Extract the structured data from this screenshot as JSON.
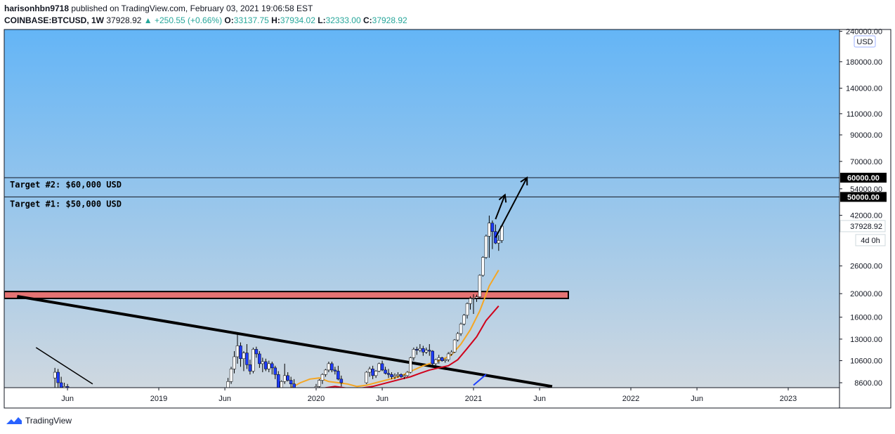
{
  "header": {
    "author": "harisonhbn9718",
    "published": "published on TradingView.com, February 03, 2021 19:06:58 EST",
    "symbol": "COINBASE:BTCUSD, 1W",
    "last": "37928.92",
    "change": "+250.55 (+0.66%)",
    "o_label": "O:",
    "o": "33137.75",
    "h_label": "H:",
    "h": "37934.02",
    "l_label": "L:",
    "l": "32333.00",
    "c_label": "C:",
    "c": "37928.92"
  },
  "footer": {
    "brand": "TradingView"
  },
  "colors": {
    "bg_top": "#64b5f6",
    "bg_bottom": "#cfd8e0",
    "accent_up": "#26a69a",
    "ma_fast": "#f5a623",
    "ma_slow": "#d0021b",
    "zone": "#e57373"
  },
  "chart_data": {
    "type": "candlestick",
    "scale": "log",
    "currency_badge": "USD",
    "price_ticks": [
      "240000.00",
      "180000.00",
      "140000.00",
      "110000.00",
      "90000.00",
      "70000.00",
      "54000.00",
      "42000.00",
      "26000.00",
      "20000.00",
      "16000.00",
      "13000.00",
      "10600.00",
      "8600.00"
    ],
    "price_tick_values": [
      240000,
      180000,
      140000,
      110000,
      90000,
      70000,
      54000,
      42000,
      26000,
      20000,
      16000,
      13000,
      10600,
      8600
    ],
    "time_ticks": [
      "Jun",
      "2019",
      "Jun",
      "2020",
      "Jun",
      "2021",
      "Jun",
      "2022",
      "Jun",
      "2023"
    ],
    "last_price_label": "37928.92",
    "countdown_label": "4d 0h",
    "targets": [
      {
        "label": "Target #2: $60,000 USD",
        "price": 60000,
        "price_label": "60000.00"
      },
      {
        "label": "Target #1: $50,000 USD",
        "price": 50000,
        "price_label": "50000.00"
      }
    ],
    "support_zone": {
      "low": 19500,
      "high": 20000
    },
    "candles": [
      [
        2018.34,
        9000,
        9900,
        8000,
        9500
      ],
      [
        2018.36,
        9500,
        9800,
        8200,
        8600
      ],
      [
        2018.38,
        8600,
        9100,
        7600,
        8000
      ],
      [
        2018.4,
        8000,
        8600,
        7400,
        8300
      ],
      [
        2018.42,
        8300,
        8500,
        7200,
        7500
      ],
      [
        2018.44,
        7500,
        7700,
        6600,
        6800
      ],
      [
        2018.46,
        6800,
        7000,
        6100,
        6400
      ],
      [
        2018.48,
        6400,
        6700,
        5900,
        6200
      ],
      [
        2018.5,
        6200,
        6700,
        6000,
        6500
      ],
      [
        2018.52,
        6500,
        7500,
        6300,
        7300
      ],
      [
        2019.42,
        7300,
        8100,
        7000,
        7900
      ],
      [
        2019.44,
        7900,
        9000,
        7600,
        8700
      ],
      [
        2019.46,
        8700,
        10000,
        8500,
        9800
      ],
      [
        2019.48,
        9800,
        11600,
        9400,
        11000
      ],
      [
        2019.5,
        11000,
        13800,
        10300,
        12200
      ],
      [
        2019.52,
        12200,
        12600,
        10000,
        10800
      ],
      [
        2019.54,
        10800,
        11600,
        9600,
        11400
      ],
      [
        2019.56,
        11400,
        12400,
        9800,
        10200
      ],
      [
        2019.58,
        10200,
        10700,
        9300,
        9600
      ],
      [
        2019.6,
        9600,
        12000,
        9400,
        11800
      ],
      [
        2019.62,
        11800,
        12100,
        10900,
        11300
      ],
      [
        2019.64,
        11300,
        11600,
        9900,
        10300
      ],
      [
        2019.66,
        10300,
        10900,
        9500,
        10500
      ],
      [
        2019.68,
        10500,
        10800,
        9600,
        9800
      ],
      [
        2019.7,
        9800,
        10600,
        9500,
        10300
      ],
      [
        2019.72,
        10300,
        10500,
        9300,
        9900
      ],
      [
        2019.74,
        9900,
        10100,
        8900,
        9300
      ],
      [
        2019.76,
        9300,
        9600,
        8100,
        8200
      ],
      [
        2019.78,
        8200,
        8800,
        7500,
        8700
      ],
      [
        2019.8,
        8700,
        10300,
        8500,
        9200
      ],
      [
        2019.82,
        9200,
        9500,
        8700,
        8800
      ],
      [
        2019.84,
        8800,
        9100,
        8100,
        8500
      ],
      [
        2019.86,
        8500,
        8900,
        7400,
        7600
      ],
      [
        2019.88,
        7600,
        7800,
        6800,
        7200
      ],
      [
        2019.96,
        7200,
        7500,
        6900,
        7300
      ],
      [
        2019.98,
        7300,
        8200,
        7100,
        8100
      ],
      [
        2020.0,
        8100,
        8500,
        7800,
        8300
      ],
      [
        2020.02,
        8300,
        8900,
        8200,
        8800
      ],
      [
        2020.04,
        8800,
        9400,
        8500,
        9300
      ],
      [
        2020.06,
        9300,
        9800,
        9100,
        9700
      ],
      [
        2020.08,
        9700,
        10500,
        9500,
        10300
      ],
      [
        2020.1,
        10300,
        10500,
        9500,
        9700
      ],
      [
        2020.12,
        9700,
        10000,
        9300,
        9600
      ],
      [
        2020.14,
        9600,
        10100,
        8800,
        8900
      ],
      [
        2020.16,
        8900,
        9200,
        8300,
        8600
      ],
      [
        2020.32,
        8600,
        9600,
        8500,
        9500
      ],
      [
        2020.34,
        9500,
        10000,
        9100,
        9800
      ],
      [
        2020.36,
        9800,
        10100,
        8900,
        9200
      ],
      [
        2020.38,
        9200,
        9700,
        9000,
        9600
      ],
      [
        2020.4,
        9600,
        10400,
        9500,
        10300
      ],
      [
        2020.42,
        10300,
        10600,
        9600,
        9700
      ],
      [
        2020.44,
        9700,
        10000,
        9300,
        9400
      ],
      [
        2020.46,
        9400,
        9800,
        9000,
        9300
      ],
      [
        2020.48,
        9300,
        9500,
        8900,
        9100
      ],
      [
        2020.5,
        9100,
        9400,
        8900,
        9200
      ],
      [
        2020.52,
        9200,
        9500,
        9000,
        9300
      ],
      [
        2020.54,
        9300,
        9400,
        9000,
        9100
      ],
      [
        2020.56,
        9100,
        9300,
        8900,
        9200
      ],
      [
        2020.58,
        9200,
        9600,
        9100,
        9500
      ],
      [
        2020.6,
        9500,
        11000,
        9400,
        10900
      ],
      [
        2020.62,
        10900,
        12000,
        10600,
        11800
      ],
      [
        2020.64,
        11800,
        12100,
        11200,
        11700
      ],
      [
        2020.66,
        11700,
        12400,
        11500,
        11900
      ],
      [
        2020.68,
        11900,
        12200,
        11100,
        11500
      ],
      [
        2020.7,
        11500,
        12000,
        11300,
        11700
      ],
      [
        2020.72,
        11700,
        12400,
        11100,
        11600
      ],
      [
        2020.74,
        11600,
        11700,
        10000,
        10300
      ],
      [
        2020.76,
        10300,
        10800,
        10000,
        10700
      ],
      [
        2020.78,
        10700,
        11200,
        10300,
        10900
      ],
      [
        2020.8,
        10900,
        11000,
        10500,
        10600
      ],
      [
        2020.82,
        10600,
        10800,
        10400,
        10700
      ],
      [
        2020.84,
        10700,
        11500,
        10500,
        11300
      ],
      [
        2020.86,
        11300,
        11700,
        11100,
        11500
      ],
      [
        2020.88,
        11500,
        13000,
        11400,
        12900
      ],
      [
        2020.9,
        12900,
        13900,
        12700,
        13700
      ],
      [
        2020.92,
        13700,
        15200,
        13400,
        15000
      ],
      [
        2020.94,
        15000,
        16500,
        14800,
        16300
      ],
      [
        2020.96,
        16300,
        18400,
        15800,
        18200
      ],
      [
        2020.98,
        18200,
        19500,
        17200,
        19100
      ],
      [
        2021.0,
        19100,
        19900,
        16500,
        19200
      ],
      [
        2021.02,
        19200,
        19800,
        18500,
        19400
      ],
      [
        2021.04,
        19400,
        24000,
        19000,
        23800
      ],
      [
        2021.06,
        23800,
        28500,
        23500,
        28200
      ],
      [
        2021.08,
        28200,
        35000,
        27800,
        34500
      ],
      [
        2021.1,
        34500,
        41900,
        28100,
        39000
      ],
      [
        2021.12,
        39000,
        40000,
        30500,
        36000
      ],
      [
        2021.14,
        36000,
        38500,
        32000,
        32300
      ],
      [
        2021.16,
        32300,
        34800,
        30000,
        33100
      ],
      [
        2021.18,
        33100,
        37934,
        32333,
        37929
      ]
    ],
    "ma_fast": [
      [
        2019.84,
        8200
      ],
      [
        2019.9,
        8600
      ],
      [
        2019.96,
        8900
      ],
      [
        2020.02,
        9000
      ],
      [
        2020.08,
        8700
      ],
      [
        2020.14,
        8600
      ],
      [
        2020.2,
        8500
      ],
      [
        2020.26,
        8300
      ],
      [
        2020.32,
        8400
      ],
      [
        2020.38,
        8600
      ],
      [
        2020.44,
        8800
      ],
      [
        2020.5,
        9000
      ],
      [
        2020.56,
        9300
      ],
      [
        2020.62,
        9700
      ],
      [
        2020.68,
        10100
      ],
      [
        2020.74,
        10400
      ],
      [
        2020.8,
        10700
      ],
      [
        2020.86,
        11200
      ],
      [
        2020.92,
        12400
      ],
      [
        2020.98,
        14200
      ],
      [
        2021.04,
        17000
      ],
      [
        2021.1,
        21500
      ],
      [
        2021.16,
        25000
      ]
    ],
    "ma_slow": [
      [
        2020.0,
        8000
      ],
      [
        2020.06,
        8200
      ],
      [
        2020.12,
        8300
      ],
      [
        2020.18,
        8200
      ],
      [
        2020.24,
        8100
      ],
      [
        2020.3,
        8200
      ],
      [
        2020.36,
        8300
      ],
      [
        2020.42,
        8500
      ],
      [
        2020.48,
        8700
      ],
      [
        2020.54,
        8900
      ],
      [
        2020.6,
        9100
      ],
      [
        2020.66,
        9400
      ],
      [
        2020.72,
        9700
      ],
      [
        2020.78,
        9900
      ],
      [
        2020.84,
        10100
      ],
      [
        2020.9,
        10700
      ],
      [
        2020.96,
        11900
      ],
      [
        2021.02,
        13300
      ],
      [
        2021.08,
        15500
      ],
      [
        2021.16,
        17800
      ]
    ],
    "ma_blue": [
      [
        2021.0,
        8400
      ],
      [
        2021.08,
        9300
      ]
    ],
    "trendline": [
      [
        2018.1,
        19500
      ],
      [
        2021.5,
        8300
      ]
    ],
    "trendline_small": [
      [
        2018.22,
        12000
      ],
      [
        2018.58,
        8500
      ]
    ],
    "projection_arrows": [
      [
        [
          2021.14,
          40500
        ],
        [
          2021.2,
          51000
        ]
      ],
      [
        [
          2021.14,
          34000
        ],
        [
          2021.34,
          60000
        ]
      ]
    ]
  }
}
